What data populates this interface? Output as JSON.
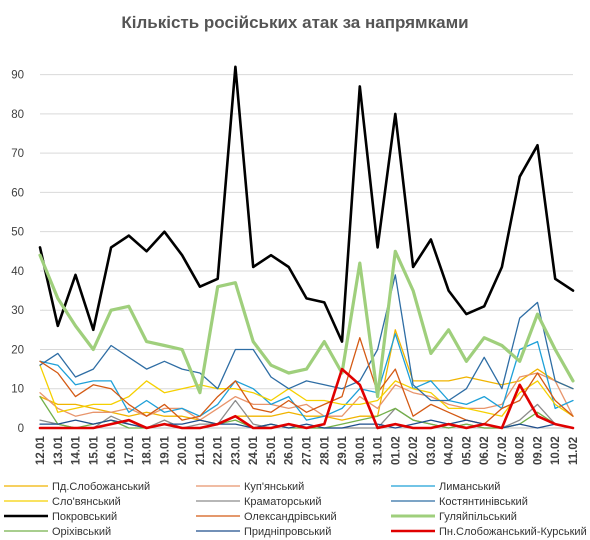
{
  "chart_data": {
    "type": "line",
    "title": "Кількість російських атак за напрямками",
    "ylim": [
      0,
      95
    ],
    "yticks": [
      0,
      10,
      20,
      30,
      40,
      50,
      60,
      70,
      80,
      90
    ],
    "grid": "horizontal",
    "legend_position": "bottom",
    "categories": [
      "12.01",
      "13.01",
      "14.01",
      "15.01",
      "16.01",
      "17.01",
      "18.01",
      "19.01",
      "20.01",
      "21.01",
      "22.01",
      "23.01",
      "24.01",
      "25.01",
      "26.01",
      "27.01",
      "28.01",
      "29.01",
      "30.01",
      "31.01",
      "01.02",
      "02.02",
      "03.02",
      "04.02",
      "05.02",
      "06.02",
      "07.02",
      "08.02",
      "09.02",
      "10.02",
      "11.02"
    ],
    "series": [
      {
        "name": "Пд.Слобожанський",
        "color": "#f0b400",
        "width": 1.3,
        "values": [
          8,
          6,
          6,
          5,
          4,
          3,
          4,
          3,
          3,
          2,
          1,
          3,
          3,
          3,
          4,
          3,
          3,
          2,
          3,
          3,
          25,
          12,
          12,
          12,
          13,
          12,
          11,
          12,
          15,
          12,
          10
        ]
      },
      {
        "name": "Куп'янський",
        "color": "#e8956c",
        "width": 1.3,
        "values": [
          9,
          5,
          3,
          4,
          4,
          5,
          3,
          5,
          5,
          2,
          5,
          8,
          6,
          6,
          5,
          6,
          3,
          3,
          8,
          5,
          11,
          9,
          8,
          6,
          5,
          5,
          6,
          13,
          14,
          12,
          3
        ]
      },
      {
        "name": "Лиманський",
        "color": "#1ea0d8",
        "width": 1.3,
        "values": [
          17,
          16,
          11,
          12,
          12,
          4,
          7,
          4,
          5,
          3,
          6,
          12,
          10,
          6,
          8,
          2,
          3,
          5,
          10,
          9,
          24,
          10,
          12,
          7,
          6,
          8,
          5,
          20,
          22,
          5,
          7
        ]
      },
      {
        "name": "Сло'вянський",
        "color": "#f5d000",
        "width": 1.3,
        "values": [
          16,
          4,
          5,
          6,
          6,
          8,
          12,
          9,
          10,
          11,
          10,
          10,
          9,
          7,
          10,
          7,
          7,
          6,
          6,
          7,
          12,
          10,
          9,
          5,
          5,
          4,
          3,
          9,
          12,
          6,
          3
        ]
      },
      {
        "name": "Краматорський",
        "color": "#8c8c8c",
        "width": 1.3,
        "values": [
          2,
          1,
          0,
          0,
          3,
          1,
          0,
          2,
          0,
          1,
          1,
          7,
          1,
          0,
          1,
          0,
          0,
          0,
          0,
          0,
          5,
          2,
          1,
          0,
          1,
          0,
          0,
          2,
          6,
          1,
          0
        ]
      },
      {
        "name": "Костянтинівський",
        "color": "#2e6da4",
        "width": 1.3,
        "values": [
          16,
          19,
          13,
          15,
          21,
          18,
          15,
          17,
          15,
          14,
          10,
          20,
          20,
          13,
          10,
          12,
          11,
          10,
          12,
          20,
          39,
          11,
          7,
          7,
          10,
          18,
          10,
          28,
          32,
          12,
          10
        ]
      },
      {
        "name": "Покровський",
        "color": "#000000",
        "width": 2.6,
        "values": [
          46,
          26,
          39,
          25,
          46,
          49,
          45,
          50,
          44,
          36,
          38,
          92,
          41,
          44,
          41,
          33,
          32,
          22,
          87,
          46,
          80,
          41,
          48,
          35,
          29,
          31,
          41,
          64,
          72,
          38,
          35
        ]
      },
      {
        "name": "Олександрівський",
        "color": "#d45a14",
        "width": 1.3,
        "values": [
          17,
          14,
          8,
          11,
          10,
          6,
          3,
          6,
          2,
          3,
          8,
          12,
          5,
          4,
          7,
          4,
          6,
          8,
          23,
          9,
          15,
          3,
          6,
          4,
          2,
          1,
          5,
          7,
          14,
          7,
          3
        ]
      },
      {
        "name": "Гуляйпільський",
        "color": "#9fcf7c",
        "width": 3.2,
        "values": [
          44,
          33,
          26,
          20,
          30,
          31,
          22,
          21,
          20,
          9,
          36,
          37,
          22,
          16,
          14,
          15,
          22,
          14,
          42,
          8,
          45,
          35,
          19,
          25,
          17,
          23,
          21,
          17,
          29,
          20,
          12
        ]
      },
      {
        "name": "Оріхівський",
        "color": "#73b04a",
        "width": 1.3,
        "values": [
          8,
          1,
          0,
          1,
          2,
          0,
          0,
          1,
          0,
          0,
          1,
          2,
          0,
          1,
          0,
          0,
          0,
          1,
          2,
          3,
          5,
          2,
          1,
          0,
          1,
          0,
          0,
          1,
          4,
          1,
          0
        ]
      },
      {
        "name": "Придніпровський",
        "color": "#1f4e8c",
        "width": 1.3,
        "values": [
          1,
          1,
          2,
          1,
          2,
          1,
          0,
          1,
          1,
          2,
          1,
          1,
          0,
          1,
          0,
          1,
          0,
          0,
          1,
          1,
          0,
          1,
          2,
          1,
          2,
          1,
          0,
          1,
          0,
          1,
          0
        ]
      },
      {
        "name": "Пн.Слобожанський-Курський",
        "color": "#e00000",
        "width": 2.6,
        "values": [
          0,
          0,
          0,
          0,
          1,
          2,
          0,
          1,
          0,
          0,
          1,
          3,
          0,
          0,
          1,
          0,
          1,
          15,
          11,
          0,
          1,
          0,
          0,
          1,
          0,
          1,
          0,
          11,
          3,
          1,
          0
        ]
      }
    ]
  }
}
